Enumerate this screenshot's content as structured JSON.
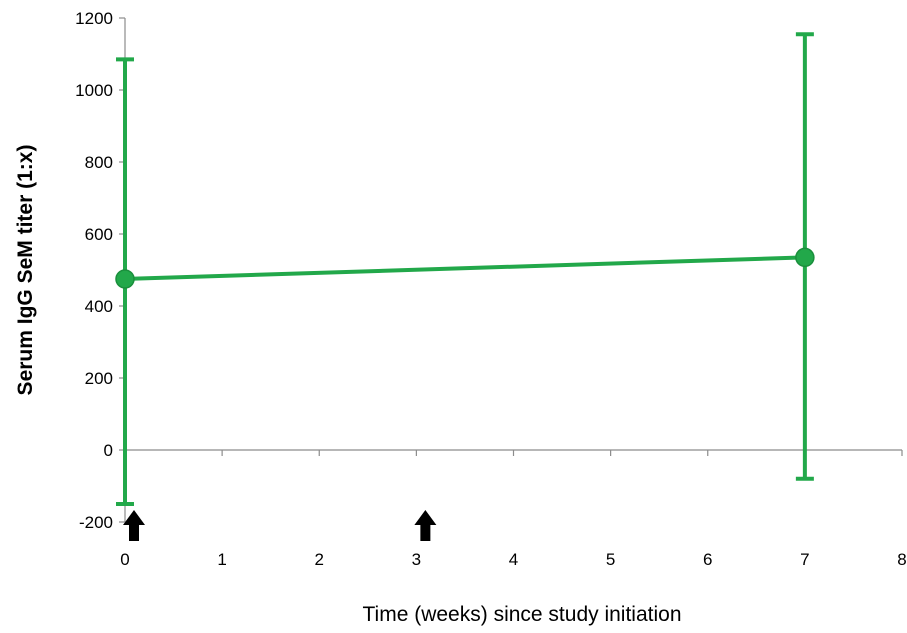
{
  "chart_data": {
    "type": "line",
    "xlabel": "Time (weeks) since study initiation",
    "ylabel": "Serum IgG SeM titer (1:x)",
    "xlim": [
      0,
      8
    ],
    "ylim": [
      -200,
      1200
    ],
    "x_ticks": [
      "0",
      "1",
      "2",
      "3",
      "4",
      "5",
      "6",
      "7",
      "8"
    ],
    "y_ticks": [
      "-200",
      "0",
      "200",
      "400",
      "600",
      "800",
      "1000",
      "1200"
    ],
    "grid": false,
    "legend": "none",
    "series": [
      {
        "color": "#22a84a",
        "points": [
          {
            "x": 0,
            "y": 475,
            "err_low": -150,
            "err_high": 1085
          },
          {
            "x": 7,
            "y": 535,
            "err_low": -80,
            "err_high": 1155
          }
        ]
      }
    ],
    "annotations": [
      {
        "type": "arrow-up",
        "x": 0,
        "icon": "arrow-up-icon",
        "color": "#000000"
      },
      {
        "type": "arrow-up",
        "x": 3,
        "icon": "arrow-up-icon",
        "color": "#000000"
      }
    ]
  }
}
